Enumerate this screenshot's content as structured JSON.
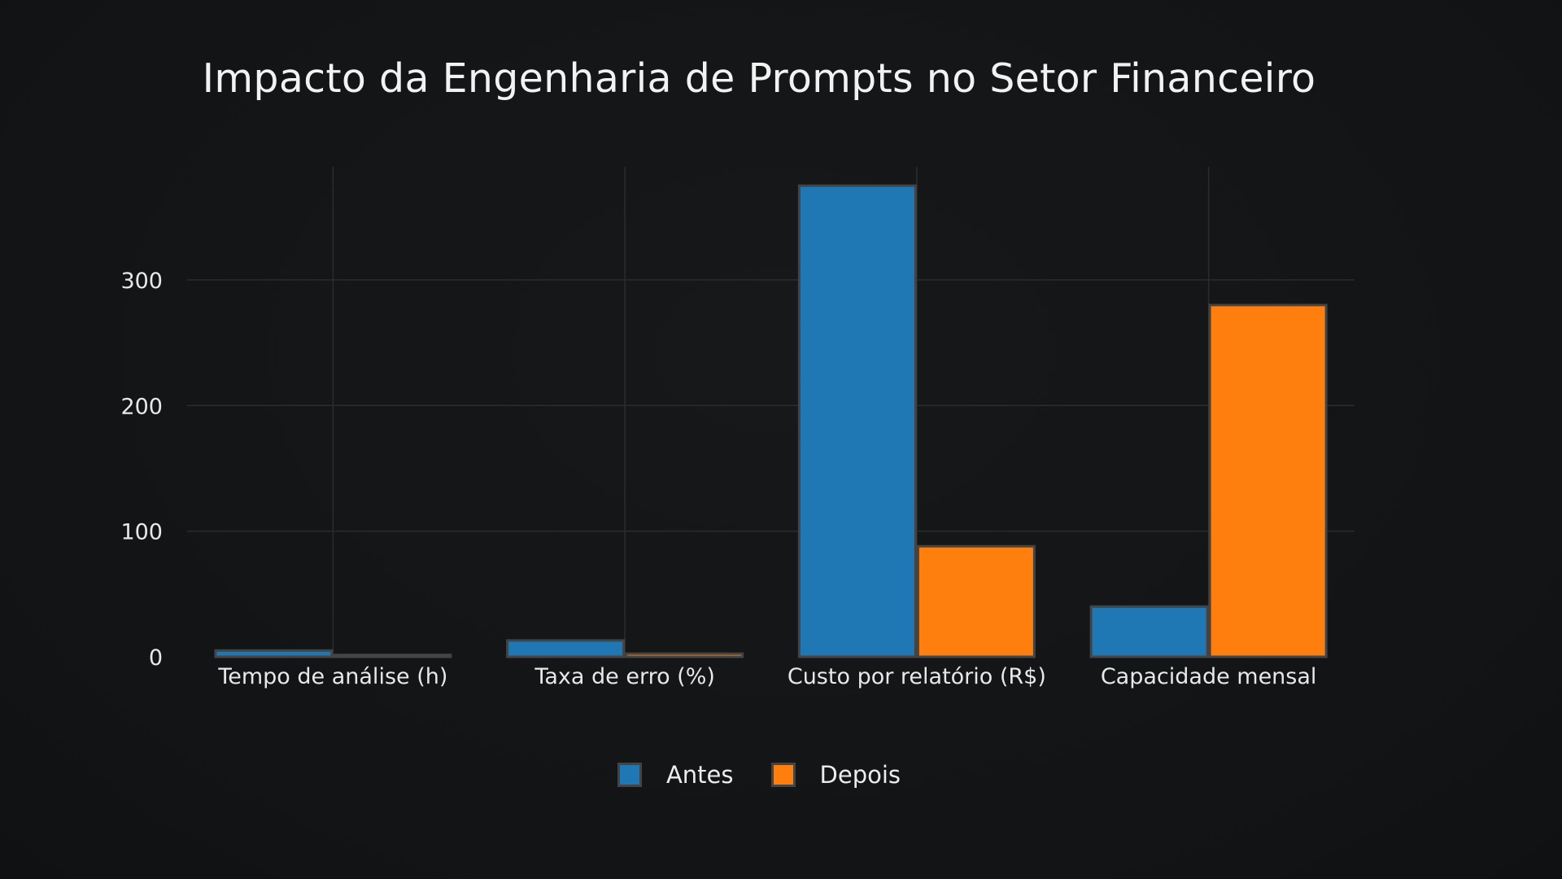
{
  "colors": {
    "background": "#131517",
    "antes": "#1f77b4",
    "depois": "#ff7f0e",
    "grid": "#2a2c2e",
    "bar_border": "#444444"
  },
  "chart_data": {
    "type": "bar",
    "title": "Impacto da Engenharia de Prompts no Setor Financeiro",
    "xlabel": "",
    "ylabel": "",
    "categories": [
      "Tempo de análise (h)",
      "Taxa de erro (%)",
      "Custo por relatório (R$)",
      "Capacidade mensal"
    ],
    "series": [
      {
        "name": "Antes",
        "values": [
          5,
          13,
          375,
          40
        ]
      },
      {
        "name": "Depois",
        "values": [
          1.5,
          2.5,
          88,
          280
        ]
      }
    ],
    "ylim": [
      0,
      390
    ],
    "yticks": [
      0,
      100,
      200,
      300
    ],
    "grid": true,
    "legend_position": "bottom-center"
  }
}
